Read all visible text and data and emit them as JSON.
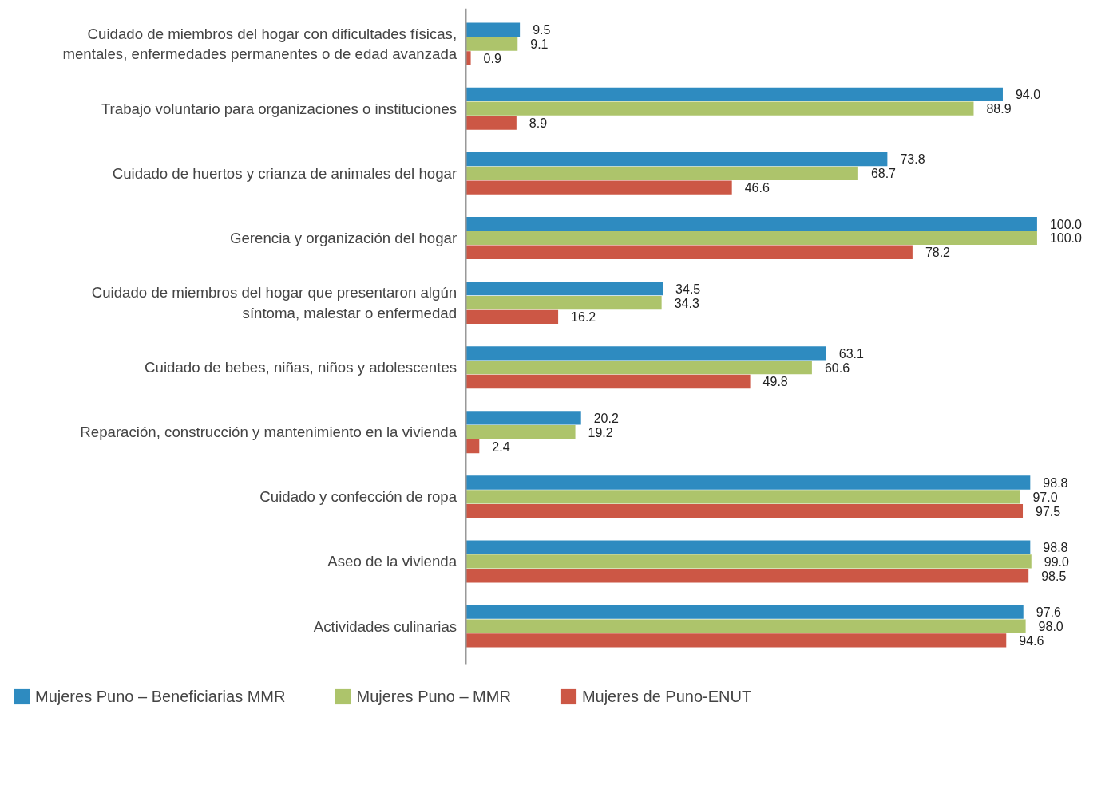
{
  "chart_data": {
    "type": "bar",
    "orientation": "horizontal",
    "legend": "bottom",
    "grid": false,
    "tick_labels": "y",
    "categories": [
      "Cuidado de miembros del hogar con dificultades físicas,\nmentales, enfermedades permanentes o de edad avanzada",
      "Trabajo voluntario para organizaciones o instituciones",
      "Cuidado de huertos y crianza de animales del hogar",
      "Gerencia y organización del hogar",
      "Cuidado de miembros del hogar que presentaron algún\nsíntoma, malestar o enfermedad",
      "Cuidado de bebes, niñas, niños y adolescentes",
      "Reparación, construcción y mantenimiento en la vivienda",
      "Cuidado y confección de ropa",
      "Aseo de la vivienda",
      "Actividades culinarias"
    ],
    "series": [
      {
        "name": "Mujeres Puno – Beneficiarias MMR",
        "color": "#2e8bc0",
        "values": [
          9.5,
          94.0,
          73.8,
          100.0,
          34.5,
          63.1,
          20.2,
          98.8,
          98.8,
          97.6
        ],
        "value_labels": [
          "9.5",
          "94.0",
          "73.8",
          "100.0",
          "34.5",
          "63.1",
          "20.2",
          "98.8",
          "98.8",
          "97.6"
        ]
      },
      {
        "name": "Mujeres Puno – MMR",
        "color": "#adc46b",
        "values": [
          9.1,
          88.9,
          68.7,
          100.0,
          34.3,
          60.6,
          19.2,
          97.0,
          99.0,
          98.0
        ],
        "value_labels": [
          "9.1",
          "88.9",
          "68.7",
          "100.0",
          "34.3",
          "60.6",
          "19.2",
          "97.0",
          "99.0",
          "98.0"
        ]
      },
      {
        "name": "Mujeres de Puno-ENUT",
        "color": "#cc5745",
        "values": [
          0.9,
          8.9,
          46.6,
          78.2,
          16.2,
          49.8,
          2.4,
          97.5,
          98.5,
          94.6
        ],
        "value_labels": [
          "0.9",
          "8.9",
          "46.6",
          "78.2",
          "16.2",
          "49.8",
          "2.4",
          "97.5",
          "98.5",
          "94.6"
        ]
      }
    ]
  }
}
